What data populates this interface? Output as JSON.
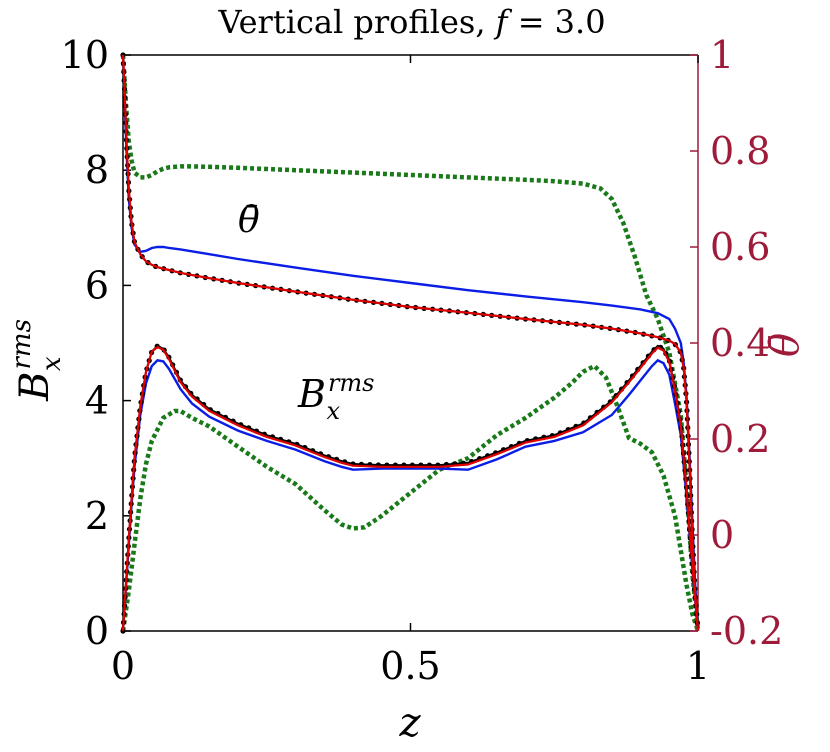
{
  "chart_data": {
    "type": "line",
    "title_prefix": "Vertical profiles, ",
    "title_var": "f",
    "title_suffix": " = 3.0",
    "xlabel": "z",
    "ylabel_left_base": "B",
    "ylabel_left_sub": "x",
    "ylabel_left_sup": "rms",
    "ylabel_right": "θ̄",
    "annotation_theta": "θ̄",
    "annotation_b_base": "B",
    "annotation_b_sub": "x",
    "annotation_b_sup": "rms",
    "xlim": [
      0,
      1
    ],
    "ylim_left": [
      0,
      10
    ],
    "ylim_right": [
      -0.2,
      1
    ],
    "x_ticks": [
      0,
      0.5,
      1
    ],
    "x_tick_labels": [
      "0",
      "0.5",
      "1"
    ],
    "y_left_ticks": [
      0,
      2,
      4,
      6,
      8,
      10
    ],
    "y_left_tick_labels": [
      "0",
      "2",
      "4",
      "6",
      "8",
      "10"
    ],
    "y_right_ticks": [
      -0.2,
      0,
      0.2,
      0.4,
      0.6,
      0.8,
      1
    ],
    "y_right_tick_labels": [
      "-0.2",
      "0",
      "0.2",
      "0.4",
      "0.6",
      "0.8",
      "1"
    ],
    "colors": {
      "black": "#000000",
      "red": "#e00000",
      "blue": "#0a1ee6",
      "green": "#1a7a1a",
      "right_axis": "#9e1b3a"
    },
    "series": [
      {
        "name": "Brms-black-dotted",
        "axis": "left",
        "style": "dots",
        "color": "#000000",
        "x": [
          0,
          0.005,
          0.01,
          0.015,
          0.02,
          0.03,
          0.04,
          0.05,
          0.06,
          0.07,
          0.08,
          0.1,
          0.12,
          0.15,
          0.2,
          0.25,
          0.3,
          0.35,
          0.38,
          0.4,
          0.45,
          0.5,
          0.55,
          0.6,
          0.65,
          0.7,
          0.75,
          0.8,
          0.85,
          0.88,
          0.9,
          0.92,
          0.93,
          0.94,
          0.95,
          0.96,
          0.97,
          0.98,
          0.985,
          0.99,
          0.995,
          1
        ],
        "y": [
          0,
          0.8,
          1.6,
          2.3,
          3.0,
          3.9,
          4.5,
          4.85,
          4.95,
          4.9,
          4.75,
          4.35,
          4.1,
          3.85,
          3.6,
          3.4,
          3.25,
          3.05,
          2.95,
          2.9,
          2.88,
          2.88,
          2.88,
          2.92,
          3.1,
          3.3,
          3.4,
          3.6,
          4.0,
          4.35,
          4.6,
          4.85,
          4.95,
          4.9,
          4.7,
          4.2,
          3.6,
          2.5,
          1.8,
          1.2,
          0.6,
          0
        ]
      },
      {
        "name": "Brms-red-line",
        "axis": "left",
        "style": "solid",
        "color": "#e00000",
        "x": [
          0,
          0.005,
          0.01,
          0.015,
          0.02,
          0.03,
          0.04,
          0.05,
          0.06,
          0.07,
          0.08,
          0.1,
          0.12,
          0.15,
          0.2,
          0.25,
          0.3,
          0.35,
          0.38,
          0.4,
          0.45,
          0.5,
          0.55,
          0.6,
          0.65,
          0.7,
          0.75,
          0.8,
          0.85,
          0.88,
          0.9,
          0.92,
          0.93,
          0.94,
          0.95,
          0.96,
          0.97,
          0.98,
          0.985,
          0.99,
          0.995,
          1
        ],
        "y": [
          0,
          0.8,
          1.6,
          2.3,
          3.0,
          3.9,
          4.5,
          4.85,
          4.93,
          4.88,
          4.72,
          4.32,
          4.07,
          3.82,
          3.57,
          3.37,
          3.22,
          3.02,
          2.92,
          2.87,
          2.85,
          2.85,
          2.85,
          2.89,
          3.07,
          3.27,
          3.37,
          3.57,
          3.97,
          4.32,
          4.57,
          4.82,
          4.92,
          4.87,
          4.67,
          4.17,
          3.57,
          2.47,
          1.77,
          1.17,
          0.57,
          0
        ]
      },
      {
        "name": "Brms-blue-line",
        "axis": "left",
        "style": "solid",
        "color": "#0a1ee6",
        "x": [
          0,
          0.005,
          0.01,
          0.015,
          0.02,
          0.03,
          0.04,
          0.05,
          0.06,
          0.07,
          0.08,
          0.1,
          0.12,
          0.15,
          0.2,
          0.25,
          0.3,
          0.35,
          0.38,
          0.4,
          0.45,
          0.5,
          0.55,
          0.6,
          0.65,
          0.7,
          0.75,
          0.8,
          0.85,
          0.88,
          0.9,
          0.92,
          0.93,
          0.94,
          0.95,
          0.96,
          0.97,
          0.98,
          0.985,
          0.99,
          0.995,
          1
        ],
        "y": [
          0,
          0.75,
          1.5,
          2.2,
          2.85,
          3.75,
          4.3,
          4.6,
          4.7,
          4.68,
          4.55,
          4.2,
          3.95,
          3.72,
          3.48,
          3.3,
          3.15,
          2.95,
          2.85,
          2.8,
          2.82,
          2.82,
          2.82,
          2.8,
          2.98,
          3.2,
          3.3,
          3.45,
          3.75,
          4.1,
          4.35,
          4.6,
          4.7,
          4.65,
          4.45,
          3.95,
          3.4,
          2.35,
          1.7,
          1.1,
          0.55,
          0
        ]
      },
      {
        "name": "Brms-green-dotted",
        "axis": "left",
        "style": "dashed",
        "color": "#1a7a1a",
        "x": [
          0,
          0.01,
          0.02,
          0.03,
          0.04,
          0.05,
          0.07,
          0.09,
          0.1,
          0.12,
          0.15,
          0.2,
          0.25,
          0.3,
          0.35,
          0.38,
          0.4,
          0.42,
          0.45,
          0.5,
          0.55,
          0.6,
          0.65,
          0.7,
          0.75,
          0.78,
          0.8,
          0.82,
          0.84,
          0.86,
          0.88,
          0.9,
          0.92,
          0.94,
          0.96,
          0.97,
          0.98,
          0.99,
          1
        ],
        "y": [
          0,
          0.7,
          1.5,
          2.3,
          2.9,
          3.3,
          3.7,
          3.82,
          3.82,
          3.7,
          3.55,
          3.2,
          2.85,
          2.55,
          2.1,
          1.85,
          1.78,
          1.8,
          2.0,
          2.4,
          2.8,
          3.0,
          3.4,
          3.7,
          4.05,
          4.3,
          4.5,
          4.6,
          4.4,
          3.9,
          3.35,
          3.25,
          3.1,
          2.7,
          2.0,
          1.4,
          0.8,
          0.3,
          0
        ]
      },
      {
        "name": "theta-black-dotted",
        "axis": "right",
        "style": "dots",
        "color": "#000000",
        "x": [
          0,
          0.003,
          0.006,
          0.01,
          0.015,
          0.02,
          0.03,
          0.04,
          0.05,
          0.06,
          0.08,
          0.1,
          0.15,
          0.2,
          0.3,
          0.4,
          0.5,
          0.6,
          0.7,
          0.8,
          0.85,
          0.9,
          0.93,
          0.95,
          0.96,
          0.97,
          0.975,
          0.98,
          0.985,
          0.99,
          0.995,
          1
        ],
        "y": [
          1.0,
          0.92,
          0.82,
          0.72,
          0.65,
          0.61,
          0.585,
          0.57,
          0.563,
          0.558,
          0.552,
          0.546,
          0.535,
          0.525,
          0.507,
          0.49,
          0.475,
          0.463,
          0.45,
          0.438,
          0.43,
          0.42,
          0.412,
          0.405,
          0.398,
          0.38,
          0.35,
          0.28,
          0.15,
          0.0,
          -0.12,
          -0.2
        ]
      },
      {
        "name": "theta-red-line",
        "axis": "right",
        "style": "solid",
        "color": "#e00000",
        "x": [
          0,
          0.003,
          0.006,
          0.01,
          0.015,
          0.02,
          0.03,
          0.04,
          0.05,
          0.06,
          0.08,
          0.1,
          0.15,
          0.2,
          0.3,
          0.4,
          0.5,
          0.6,
          0.7,
          0.8,
          0.85,
          0.9,
          0.93,
          0.95,
          0.96,
          0.97,
          0.975,
          0.98,
          0.985,
          0.99,
          0.995,
          1
        ],
        "y": [
          1.0,
          0.92,
          0.82,
          0.72,
          0.65,
          0.61,
          0.585,
          0.57,
          0.563,
          0.558,
          0.552,
          0.546,
          0.535,
          0.525,
          0.507,
          0.49,
          0.475,
          0.463,
          0.45,
          0.438,
          0.43,
          0.42,
          0.412,
          0.405,
          0.398,
          0.38,
          0.35,
          0.28,
          0.15,
          0.0,
          -0.12,
          -0.2
        ]
      },
      {
        "name": "theta-blue-line",
        "axis": "right",
        "style": "solid",
        "color": "#0a1ee6",
        "x": [
          0,
          0.003,
          0.006,
          0.01,
          0.015,
          0.02,
          0.03,
          0.04,
          0.05,
          0.06,
          0.07,
          0.08,
          0.1,
          0.15,
          0.2,
          0.3,
          0.4,
          0.5,
          0.6,
          0.7,
          0.8,
          0.85,
          0.9,
          0.93,
          0.95,
          0.96,
          0.97,
          0.975,
          0.98,
          0.985,
          0.99,
          0.995,
          1
        ],
        "y": [
          1.0,
          0.9,
          0.8,
          0.7,
          0.64,
          0.605,
          0.59,
          0.592,
          0.598,
          0.6,
          0.6,
          0.598,
          0.595,
          0.585,
          0.575,
          0.557,
          0.54,
          0.525,
          0.51,
          0.497,
          0.485,
          0.478,
          0.47,
          0.462,
          0.45,
          0.43,
          0.4,
          0.36,
          0.29,
          0.17,
          0.03,
          -0.1,
          -0.2
        ]
      },
      {
        "name": "theta-green-dotted",
        "axis": "right",
        "style": "dashed",
        "color": "#1a7a1a",
        "x": [
          0,
          0.005,
          0.01,
          0.015,
          0.02,
          0.03,
          0.04,
          0.05,
          0.06,
          0.07,
          0.08,
          0.1,
          0.12,
          0.15,
          0.2,
          0.3,
          0.4,
          0.5,
          0.6,
          0.7,
          0.75,
          0.8,
          0.83,
          0.85,
          0.87,
          0.89,
          0.91,
          0.93,
          0.95,
          0.97,
          0.98,
          0.99,
          1
        ],
        "y": [
          1.0,
          0.9,
          0.82,
          0.78,
          0.755,
          0.745,
          0.745,
          0.75,
          0.758,
          0.763,
          0.766,
          0.768,
          0.768,
          0.767,
          0.765,
          0.76,
          0.755,
          0.75,
          0.745,
          0.74,
          0.737,
          0.732,
          0.722,
          0.7,
          0.65,
          0.58,
          0.5,
          0.45,
          0.38,
          0.25,
          0.1,
          -0.08,
          -0.2
        ]
      }
    ]
  }
}
